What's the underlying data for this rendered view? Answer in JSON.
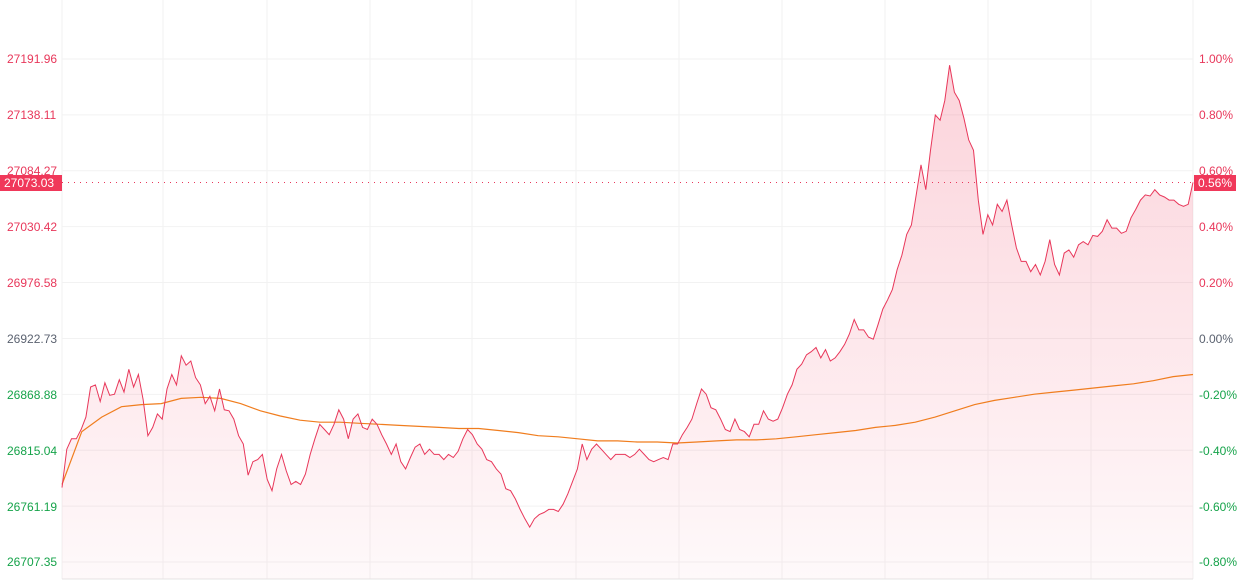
{
  "chart_data": {
    "type": "area",
    "title": "",
    "xlabel": "",
    "ylabel": "",
    "ylim": [
      26707.35,
      27191.96
    ],
    "grid": true,
    "base_price": 26922.73,
    "left_ticks": [
      "27191.96",
      "27138.11",
      "27084.27",
      "27030.42",
      "26976.58",
      "26922.73",
      "26868.88",
      "26815.04",
      "26761.19",
      "26707.35"
    ],
    "right_ticks": [
      "1.00%",
      "0.80%",
      "0.60%",
      "0.40%",
      "0.20%",
      "0.00%",
      "-0.20%",
      "-0.40%",
      "-0.60%",
      "-0.80%"
    ],
    "last_price_label": "27073.03",
    "last_change_label": "0.56%",
    "colors": {
      "price_line": "#e8375a",
      "average_line": "#f07d1e",
      "up": "#e8375a",
      "down": "#16a34a",
      "zero": "#5b6270",
      "badge": "#f0385a"
    },
    "series": [
      {
        "role": "price",
        "values": [
          26779,
          26816,
          26826,
          26826,
          26835,
          26847,
          26876,
          26878,
          26862,
          26880,
          26868,
          26869,
          26883,
          26871,
          26893,
          26876,
          26888,
          26864,
          26829,
          26837,
          26850,
          26845,
          26874,
          26888,
          26878,
          26906,
          26897,
          26901,
          26885,
          26878,
          26860,
          26867,
          26853,
          26874,
          26854,
          26853,
          26845,
          26829,
          26821,
          26791,
          26804,
          26806,
          26811,
          26787,
          26776,
          26797,
          26811,
          26795,
          26782,
          26785,
          26782,
          26792,
          26811,
          26826,
          26840,
          26835,
          26830,
          26840,
          26854,
          26845,
          26826,
          26845,
          26850,
          26837,
          26835,
          26845,
          26840,
          26830,
          26821,
          26811,
          26821,
          26804,
          26797,
          26808,
          26818,
          26821,
          26811,
          26816,
          26811,
          26811,
          26806,
          26811,
          26808,
          26814,
          26826,
          26835,
          26830,
          26821,
          26816,
          26806,
          26804,
          26797,
          26792,
          26778,
          26776,
          26768,
          26758,
          26749,
          26741,
          26749,
          26753,
          26755,
          26758,
          26758,
          26756,
          26763,
          26773,
          26785,
          26797,
          26821,
          26806,
          26816,
          26821,
          26816,
          26811,
          26806,
          26811,
          26811,
          26811,
          26808,
          26811,
          26816,
          26811,
          26806,
          26804,
          26806,
          26808,
          26806,
          26821,
          26821,
          26830,
          26837,
          26845,
          26860,
          26874,
          26869,
          26856,
          26854,
          26845,
          26835,
          26833,
          26845,
          26835,
          26833,
          26828,
          26840,
          26840,
          26853,
          26845,
          26843,
          26845,
          26856,
          26869,
          26878,
          26893,
          26898,
          26907,
          26910,
          26914,
          26904,
          26912,
          26901,
          26904,
          26910,
          26917,
          26927,
          26941,
          26931,
          26931,
          26924,
          26922,
          26936,
          26951,
          26960,
          26970,
          26989,
          27003,
          27023,
          27032,
          27061,
          27090,
          27066,
          27104,
          27138,
          27133,
          27152,
          27186,
          27160,
          27152,
          27135,
          27114,
          27104,
          27056,
          27023,
          27042,
          27032,
          27052,
          27045,
          27056,
          27032,
          27010,
          26997,
          26997,
          26987,
          26994,
          26984,
          26997,
          27018,
          26994,
          26984,
          27005,
          27008,
          27001,
          27013,
          27016,
          27013,
          27022,
          27021,
          27026,
          27037,
          27029,
          27029,
          27024,
          27026,
          27039,
          27047,
          27056,
          27061,
          27060,
          27066,
          27061,
          27059,
          27056,
          27056,
          27052,
          27050,
          27052,
          27073.03
        ]
      },
      {
        "role": "average",
        "values": [
          26782,
          26833,
          26847,
          26857,
          26859,
          26860,
          26865,
          26866,
          26865,
          26860,
          26853,
          26848,
          26844,
          26842,
          26842,
          26841,
          26840,
          26839,
          26838,
          26837,
          26836,
          26836,
          26834,
          26832,
          26829,
          26828,
          26826,
          26824,
          26824,
          26823,
          26823,
          26822,
          26823,
          26824,
          26825,
          26825,
          26826,
          26828,
          26830,
          26832,
          26834,
          26837,
          26839,
          26842,
          26847,
          26853,
          26859,
          26863,
          26866,
          26869,
          26871,
          26873,
          26875,
          26877,
          26879,
          26882,
          26886,
          26888
        ]
      }
    ]
  }
}
